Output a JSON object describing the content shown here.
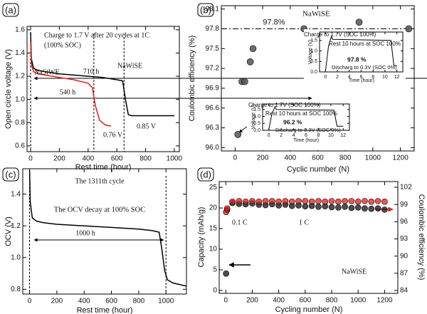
{
  "chart_data": [
    {
      "type": "line",
      "panel_label": "(a)",
      "xlabel": "Rest time (hour)",
      "ylabel": "Open circle voltage (V)",
      "xlim": [
        -25,
        1035
      ],
      "ylim": [
        0.55,
        1.63
      ],
      "xticks": [
        0,
        200,
        400,
        600,
        800,
        1000
      ],
      "yticks": [
        0.6,
        0.8,
        {
          "value": 1,
          "label": "1.0"
        },
        1.2,
        1.4,
        1.6
      ],
      "reference_lines": [
        0,
        440,
        650
      ],
      "annotations": [
        "Charge to 1.7 V after 20 cycles at 1C",
        "(100% SOC)",
        "NaSiWE",
        "NaWiSE",
        "710 h",
        "540 h",
        "0.76 V",
        "0.85 V"
      ],
      "series": [
        {
          "name": "NaWiSE",
          "color": "#000000",
          "x": [
            0,
            5,
            20,
            50,
            100,
            200,
            300,
            400,
            500,
            600,
            640,
            660,
            680,
            700,
            800,
            900,
            1000
          ],
          "values": [
            1.58,
            1.35,
            1.27,
            1.25,
            1.24,
            1.22,
            1.21,
            1.2,
            1.19,
            1.17,
            1.16,
            1.0,
            0.87,
            0.86,
            0.86,
            0.86,
            0.86
          ]
        },
        {
          "name": "NaSiWE",
          "color": "#e0201b",
          "x": [
            0,
            5,
            20,
            50,
            100,
            200,
            300,
            400,
            430,
            450,
            480,
            520,
            560
          ],
          "values": [
            1.5,
            1.3,
            1.24,
            1.22,
            1.21,
            1.19,
            1.17,
            1.14,
            1.1,
            0.95,
            0.82,
            0.78,
            0.77
          ]
        }
      ]
    },
    {
      "type": "scatter",
      "panel_label": "(b)",
      "xlabel": "Cyclic number (N)",
      "ylabel": "Coulombic efficiency (%)",
      "xlim": [
        -100,
        1300
      ],
      "ylim": [
        95.95,
        98.15
      ],
      "xticks": [
        0,
        200,
        400,
        600,
        800,
        1000,
        1200
      ],
      "yticks": [
        {
          "value": 96,
          "label": "96.0"
        },
        96.3,
        96.6,
        96.9,
        97.2,
        97.5,
        97.8,
        98.1
      ],
      "reference_line": {
        "value": 97.8,
        "label": "97.8%"
      },
      "annotations": [
        "NaWiSE"
      ],
      "series": [
        {
          "name": "NaWiSE",
          "color": "#555555",
          "x": [
            20,
            50,
            70,
            110,
            130,
            500,
            900,
            1260
          ],
          "values": [
            96.2,
            97.0,
            97.0,
            97.3,
            97.5,
            97.8,
            97.9,
            97.8
          ]
        }
      ],
      "insets": [
        {
          "type": "line",
          "xlabel": "Time (hour)",
          "ylabel": "Voltage (V)",
          "xlim": [
            -1,
            13
          ],
          "ylim": [
            0,
            1.9
          ],
          "xticks": [
            0,
            2,
            4,
            6,
            8,
            10,
            12
          ],
          "yticks": [
            {
              "value": 0,
              "label": "0.0"
            },
            0.5,
            {
              "value": 1,
              "label": "1.0"
            },
            1.5
          ],
          "annotations": [
            "Charge to 1.7V (SOC 100%)",
            "Rest 10 hours at SOC 100%",
            "97.8 %",
            "Discharg to 0.3V (SOC 0%)"
          ],
          "series": [
            {
              "color": "#000000",
              "x": [
                0,
                0.5,
                1,
                1.2,
                11,
                11.5,
                12
              ],
              "values": [
                0.05,
                1.2,
                1.7,
                1.55,
                1.5,
                0.3,
                0.3
              ]
            }
          ]
        },
        {
          "type": "line",
          "xlabel": "Time (hour)",
          "ylabel": "Voltage (V)",
          "xlim": [
            -1,
            13
          ],
          "ylim": [
            0,
            1.9
          ],
          "xticks": [
            0,
            2,
            4,
            6,
            8,
            10,
            12
          ],
          "yticks": [
            {
              "value": 0,
              "label": "0.0"
            },
            0.5,
            {
              "value": 1,
              "label": "1.0"
            },
            1.5
          ],
          "annotations": [
            "Charge to 1.7V (SOC 100%)",
            "Rest 10 hours at SOC 100%",
            "96.2 %",
            "Discharg to 0.3V (SOC 0%)"
          ],
          "series": [
            {
              "color": "#000000",
              "x": [
                0,
                0.5,
                1,
                1.2,
                10.5,
                11,
                12
              ],
              "values": [
                0.05,
                1.2,
                1.7,
                1.5,
                1.45,
                0.3,
                0.3
              ]
            }
          ]
        }
      ]
    },
    {
      "type": "line",
      "panel_label": "(c)",
      "xlabel": "Rest time (hour)",
      "ylabel": "OCV (V)",
      "xlim": [
        -50,
        1150
      ],
      "ylim": [
        0.77,
        1.56
      ],
      "xticks": [
        0,
        200,
        400,
        600,
        800,
        1000
      ],
      "yticks": [
        0.8,
        {
          "value": 1,
          "label": "1.0"
        },
        1.2,
        1.4
      ],
      "reference_lines": [
        0,
        1000
      ],
      "annotations": [
        "The 1311th cycle",
        "The OCV decay at 100% SOC",
        "1000 h"
      ],
      "series": [
        {
          "name": "OCV",
          "color": "#000000",
          "x": [
            0,
            5,
            20,
            50,
            100,
            200,
            400,
            600,
            800,
            900,
            950,
            970,
            990,
            1010,
            1050,
            1100,
            1150
          ],
          "values": [
            1.55,
            1.35,
            1.25,
            1.23,
            1.22,
            1.21,
            1.2,
            1.19,
            1.18,
            1.17,
            1.16,
            1.05,
            0.92,
            0.86,
            0.84,
            0.83,
            0.82
          ]
        }
      ]
    },
    {
      "type": "scatter",
      "panel_label": "(d)",
      "xlabel": "Cycling number (N)",
      "ylabel": "Capacity (mAh/g)",
      "y2label": "Coulombic efficiency (%)",
      "xlim": [
        -50,
        1300
      ],
      "ylim": [
        -0.7,
        26.4
      ],
      "y2lim": [
        83.5,
        103
      ],
      "xticks": [
        0,
        200,
        400,
        600,
        800,
        1000,
        1200
      ],
      "yticks": [
        0,
        5,
        10,
        15,
        20,
        25
      ],
      "y2ticks": [
        84,
        87,
        90,
        93,
        96,
        99,
        102
      ],
      "annotations": [
        "0.1 C",
        "1 C",
        "NaWiSE"
      ],
      "series": [
        {
          "name": "Capacity",
          "color": "#111111",
          "x": [
            2,
            10,
            50,
            100,
            150,
            200,
            250,
            300,
            350,
            400,
            450,
            500,
            550,
            600,
            650,
            700,
            750,
            800,
            850,
            900,
            950,
            1000,
            1050,
            1100,
            1150,
            1200
          ],
          "values": [
            4.1,
            19.5,
            21.2,
            21.0,
            20.9,
            21.1,
            20.8,
            20.7,
            20.9,
            20.6,
            20.8,
            20.5,
            20.6,
            20.4,
            20.5,
            20.3,
            20.4,
            20.2,
            20.1,
            20.3,
            20.0,
            20.1,
            19.9,
            19.8,
            19.9,
            19.6
          ]
        },
        {
          "name": "Coulombic efficiency",
          "color": "#e0201b",
          "axis": "y2",
          "x": [
            2,
            10,
            50,
            100,
            150,
            200,
            250,
            300,
            350,
            400,
            450,
            500,
            550,
            600,
            650,
            700,
            750,
            800,
            850,
            900,
            950,
            1000,
            1050,
            1100,
            1150,
            1200
          ],
          "values": [
            97.7,
            98.3,
            99.5,
            99.6,
            99.5,
            99.6,
            99.5,
            99.6,
            99.6,
            99.5,
            99.6,
            99.5,
            99.6,
            99.6,
            99.5,
            99.6,
            99.5,
            99.6,
            99.5,
            99.6,
            99.6,
            99.5,
            99.6,
            99.5,
            99.6,
            99.5
          ]
        }
      ]
    }
  ]
}
